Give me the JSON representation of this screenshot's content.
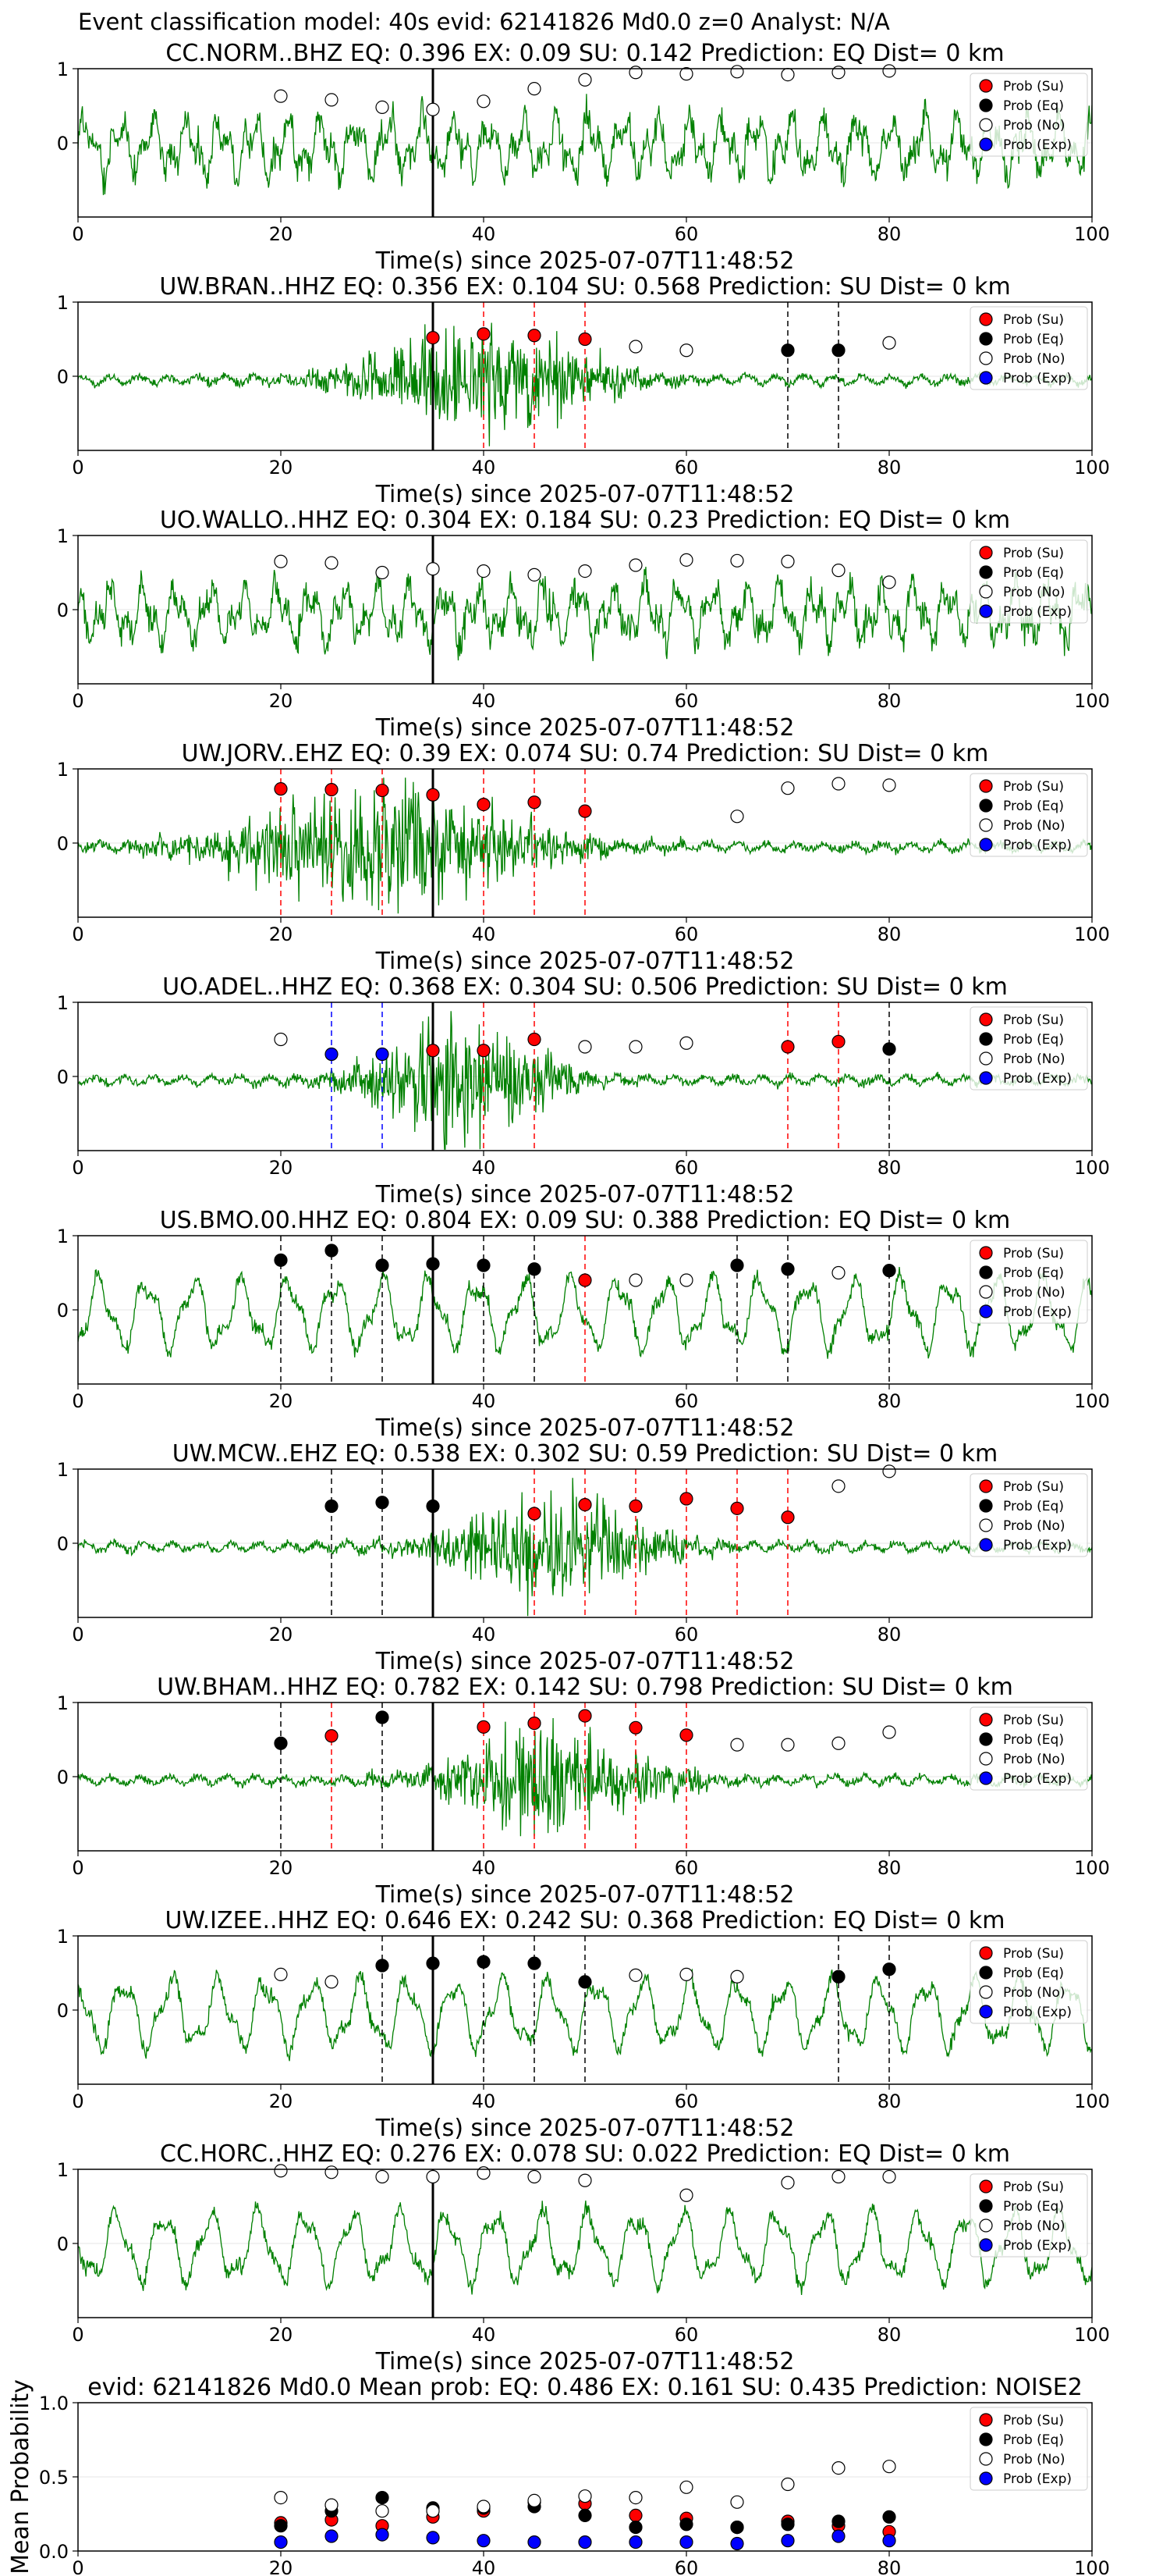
{
  "suptitle": "Event classification model: 40s evid: 62141826 Md0.0 z=0 Analyst: N/A",
  "colors": {
    "waveform": "#008000",
    "su": "#ff0000",
    "eq": "#000000",
    "no": "#ffffff",
    "exp": "#0000ff",
    "pick": "#000000"
  },
  "legend": [
    "Prob (Su)",
    "Prob (Eq)",
    "Prob (No)",
    "Prob (Exp)"
  ],
  "chart_data": [
    {
      "type": "scatter",
      "title": "CC.NORM..BHZ   EQ: 0.396  EX: 0.09  SU: 0.142   Prediction: EQ    Dist= 0 km",
      "xlabel": "Time(s) since 2025-07-07T11:48:52",
      "xlim": [
        0,
        100
      ],
      "ylim": [
        -1,
        1
      ],
      "xticks": [
        0,
        20,
        40,
        60,
        80,
        100
      ],
      "yticks": [
        1,
        0
      ],
      "pick_time": 35,
      "waveform_style": "noisy",
      "points": [
        {
          "x": 20,
          "y": 0.63,
          "class": "no"
        },
        {
          "x": 25,
          "y": 0.58,
          "class": "no"
        },
        {
          "x": 30,
          "y": 0.48,
          "class": "no"
        },
        {
          "x": 35,
          "y": 0.45,
          "class": "no"
        },
        {
          "x": 40,
          "y": 0.56,
          "class": "no"
        },
        {
          "x": 45,
          "y": 0.73,
          "class": "no"
        },
        {
          "x": 50,
          "y": 0.85,
          "class": "no"
        },
        {
          "x": 55,
          "y": 0.95,
          "class": "no"
        },
        {
          "x": 60,
          "y": 0.93,
          "class": "no"
        },
        {
          "x": 65,
          "y": 0.96,
          "class": "no"
        },
        {
          "x": 70,
          "y": 0.92,
          "class": "no"
        },
        {
          "x": 75,
          "y": 0.95,
          "class": "no"
        },
        {
          "x": 80,
          "y": 0.97,
          "class": "no"
        }
      ]
    },
    {
      "type": "scatter",
      "title": "UW.BRAN..HHZ   EQ: 0.356  EX: 0.104  SU: 0.568   Prediction: SU    Dist= 0 km",
      "xlabel": "Time(s) since 2025-07-07T11:48:52",
      "xlim": [
        0,
        100
      ],
      "ylim": [
        -1,
        1
      ],
      "xticks": [
        0,
        20,
        40,
        60,
        80,
        100
      ],
      "yticks": [
        1,
        0
      ],
      "pick_time": 35,
      "waveform_style": "burst",
      "points": [
        {
          "x": 35,
          "y": 0.52,
          "class": "su"
        },
        {
          "x": 40,
          "y": 0.57,
          "class": "su"
        },
        {
          "x": 45,
          "y": 0.55,
          "class": "su"
        },
        {
          "x": 50,
          "y": 0.5,
          "class": "su"
        },
        {
          "x": 55,
          "y": 0.4,
          "class": "no"
        },
        {
          "x": 60,
          "y": 0.35,
          "class": "no"
        },
        {
          "x": 70,
          "y": 0.35,
          "class": "eq"
        },
        {
          "x": 75,
          "y": 0.35,
          "class": "eq"
        },
        {
          "x": 80,
          "y": 0.45,
          "class": "no"
        }
      ]
    },
    {
      "type": "scatter",
      "title": "UO.WALLO..HHZ   EQ: 0.304  EX: 0.184  SU: 0.23   Prediction: EQ    Dist= 0 km",
      "xlabel": "Time(s) since 2025-07-07T11:48:52",
      "xlim": [
        0,
        100
      ],
      "ylim": [
        -1,
        1
      ],
      "xticks": [
        0,
        20,
        40,
        60,
        80,
        100
      ],
      "yticks": [
        1,
        0
      ],
      "pick_time": 35,
      "waveform_style": "noisy",
      "points": [
        {
          "x": 20,
          "y": 0.65,
          "class": "no"
        },
        {
          "x": 25,
          "y": 0.63,
          "class": "no"
        },
        {
          "x": 30,
          "y": 0.5,
          "class": "no"
        },
        {
          "x": 35,
          "y": 0.55,
          "class": "no"
        },
        {
          "x": 40,
          "y": 0.52,
          "class": "no"
        },
        {
          "x": 45,
          "y": 0.47,
          "class": "no"
        },
        {
          "x": 50,
          "y": 0.52,
          "class": "no"
        },
        {
          "x": 55,
          "y": 0.6,
          "class": "no"
        },
        {
          "x": 60,
          "y": 0.67,
          "class": "no"
        },
        {
          "x": 65,
          "y": 0.66,
          "class": "no"
        },
        {
          "x": 70,
          "y": 0.65,
          "class": "no"
        },
        {
          "x": 75,
          "y": 0.53,
          "class": "no"
        },
        {
          "x": 80,
          "y": 0.37,
          "class": "no"
        }
      ]
    },
    {
      "type": "scatter",
      "title": "UW.JORV..EHZ   EQ: 0.39  EX: 0.074  SU: 0.74   Prediction: SU    Dist= 0 km",
      "xlabel": "Time(s) since 2025-07-07T11:48:52",
      "xlim": [
        0,
        100
      ],
      "ylim": [
        -1,
        1
      ],
      "xticks": [
        0,
        20,
        40,
        60,
        80,
        100
      ],
      "yticks": [
        1,
        0
      ],
      "pick_time": 35,
      "waveform_style": "burst-early",
      "points": [
        {
          "x": 20,
          "y": 0.73,
          "class": "su"
        },
        {
          "x": 25,
          "y": 0.72,
          "class": "su"
        },
        {
          "x": 30,
          "y": 0.71,
          "class": "su"
        },
        {
          "x": 35,
          "y": 0.65,
          "class": "su"
        },
        {
          "x": 40,
          "y": 0.52,
          "class": "su"
        },
        {
          "x": 45,
          "y": 0.55,
          "class": "su"
        },
        {
          "x": 50,
          "y": 0.43,
          "class": "su"
        },
        {
          "x": 65,
          "y": 0.36,
          "class": "no"
        },
        {
          "x": 70,
          "y": 0.74,
          "class": "no"
        },
        {
          "x": 75,
          "y": 0.8,
          "class": "no"
        },
        {
          "x": 80,
          "y": 0.78,
          "class": "no"
        }
      ]
    },
    {
      "type": "scatter",
      "title": "UO.ADEL..HHZ   EQ: 0.368  EX: 0.304  SU: 0.506   Prediction: SU    Dist= 0 km",
      "xlabel": "Time(s) since 2025-07-07T11:48:52",
      "xlim": [
        0,
        100
      ],
      "ylim": [
        -1,
        1
      ],
      "xticks": [
        0,
        20,
        40,
        60,
        80,
        100
      ],
      "yticks": [
        1,
        0
      ],
      "pick_time": 35,
      "waveform_style": "burst-mid",
      "points": [
        {
          "x": 20,
          "y": 0.5,
          "class": "no"
        },
        {
          "x": 25,
          "y": 0.3,
          "class": "exp"
        },
        {
          "x": 30,
          "y": 0.3,
          "class": "exp"
        },
        {
          "x": 35,
          "y": 0.35,
          "class": "su"
        },
        {
          "x": 40,
          "y": 0.35,
          "class": "su"
        },
        {
          "x": 45,
          "y": 0.5,
          "class": "su"
        },
        {
          "x": 50,
          "y": 0.4,
          "class": "no"
        },
        {
          "x": 55,
          "y": 0.4,
          "class": "no"
        },
        {
          "x": 60,
          "y": 0.45,
          "class": "no"
        },
        {
          "x": 70,
          "y": 0.4,
          "class": "su"
        },
        {
          "x": 75,
          "y": 0.47,
          "class": "su"
        },
        {
          "x": 80,
          "y": 0.37,
          "class": "eq"
        }
      ]
    },
    {
      "type": "scatter",
      "title": "US.BMO.00.HHZ   EQ: 0.804  EX: 0.09  SU: 0.388   Prediction: EQ    Dist= 0 km",
      "xlabel": "Time(s) since 2025-07-07T11:48:52",
      "xlim": [
        0,
        100
      ],
      "ylim": [
        -1,
        1
      ],
      "xticks": [
        0,
        20,
        40,
        60,
        80,
        100
      ],
      "yticks": [
        1,
        0
      ],
      "pick_time": 35,
      "waveform_style": "oscillating",
      "points": [
        {
          "x": 20,
          "y": 0.67,
          "class": "eq"
        },
        {
          "x": 25,
          "y": 0.8,
          "class": "eq"
        },
        {
          "x": 30,
          "y": 0.6,
          "class": "eq"
        },
        {
          "x": 35,
          "y": 0.62,
          "class": "eq"
        },
        {
          "x": 40,
          "y": 0.6,
          "class": "eq"
        },
        {
          "x": 45,
          "y": 0.55,
          "class": "eq"
        },
        {
          "x": 50,
          "y": 0.4,
          "class": "su"
        },
        {
          "x": 55,
          "y": 0.4,
          "class": "no"
        },
        {
          "x": 60,
          "y": 0.4,
          "class": "no"
        },
        {
          "x": 65,
          "y": 0.6,
          "class": "eq"
        },
        {
          "x": 70,
          "y": 0.55,
          "class": "eq"
        },
        {
          "x": 75,
          "y": 0.5,
          "class": "no"
        },
        {
          "x": 80,
          "y": 0.53,
          "class": "eq"
        }
      ]
    },
    {
      "type": "scatter",
      "title": "UW.MCW..EHZ   EQ: 0.538  EX: 0.302  SU: 0.59   Prediction: SU    Dist= 0 km",
      "xlabel": "Time(s) since 2025-07-07T11:48:52",
      "xlim": [
        0,
        100
      ],
      "ylim": [
        -1,
        1
      ],
      "xticks": [
        0,
        20,
        40,
        60,
        80
      ],
      "yticks": [
        1,
        0
      ],
      "pick_time": 35,
      "waveform_style": "burst-late",
      "points": [
        {
          "x": 25,
          "y": 0.5,
          "class": "eq"
        },
        {
          "x": 30,
          "y": 0.55,
          "class": "eq"
        },
        {
          "x": 35,
          "y": 0.5,
          "class": "eq"
        },
        {
          "x": 45,
          "y": 0.4,
          "class": "su"
        },
        {
          "x": 50,
          "y": 0.52,
          "class": "su"
        },
        {
          "x": 55,
          "y": 0.5,
          "class": "su"
        },
        {
          "x": 60,
          "y": 0.6,
          "class": "su"
        },
        {
          "x": 65,
          "y": 0.47,
          "class": "su"
        },
        {
          "x": 70,
          "y": 0.35,
          "class": "su"
        },
        {
          "x": 75,
          "y": 0.77,
          "class": "no"
        },
        {
          "x": 80,
          "y": 0.97,
          "class": "no"
        }
      ]
    },
    {
      "type": "scatter",
      "title": "UW.BHAM..HHZ   EQ: 0.782  EX: 0.142  SU: 0.798   Prediction: SU    Dist= 0 km",
      "xlabel": "Time(s) since 2025-07-07T11:48:52",
      "xlim": [
        0,
        100
      ],
      "ylim": [
        -1,
        1
      ],
      "xticks": [
        0,
        20,
        40,
        60,
        80,
        100
      ],
      "yticks": [
        1,
        0
      ],
      "pick_time": 35,
      "waveform_style": "burst-late",
      "points": [
        {
          "x": 20,
          "y": 0.45,
          "class": "eq"
        },
        {
          "x": 25,
          "y": 0.55,
          "class": "su"
        },
        {
          "x": 30,
          "y": 0.8,
          "class": "eq"
        },
        {
          "x": 40,
          "y": 0.67,
          "class": "su"
        },
        {
          "x": 45,
          "y": 0.72,
          "class": "su"
        },
        {
          "x": 50,
          "y": 0.82,
          "class": "su"
        },
        {
          "x": 55,
          "y": 0.66,
          "class": "su"
        },
        {
          "x": 60,
          "y": 0.56,
          "class": "su"
        },
        {
          "x": 65,
          "y": 0.43,
          "class": "no"
        },
        {
          "x": 70,
          "y": 0.43,
          "class": "no"
        },
        {
          "x": 75,
          "y": 0.45,
          "class": "no"
        },
        {
          "x": 80,
          "y": 0.6,
          "class": "no"
        }
      ]
    },
    {
      "type": "scatter",
      "title": "UW.IZEE..HHZ   EQ: 0.646  EX: 0.242  SU: 0.368   Prediction: EQ    Dist= 0 km",
      "xlabel": "Time(s) since 2025-07-07T11:48:52",
      "xlim": [
        0,
        100
      ],
      "ylim": [
        -1,
        1
      ],
      "xticks": [
        0,
        20,
        40,
        60,
        80,
        100
      ],
      "yticks": [
        1,
        0
      ],
      "pick_time": 35,
      "waveform_style": "oscillating",
      "points": [
        {
          "x": 20,
          "y": 0.48,
          "class": "no"
        },
        {
          "x": 25,
          "y": 0.38,
          "class": "no"
        },
        {
          "x": 30,
          "y": 0.6,
          "class": "eq"
        },
        {
          "x": 35,
          "y": 0.63,
          "class": "eq"
        },
        {
          "x": 40,
          "y": 0.65,
          "class": "eq"
        },
        {
          "x": 45,
          "y": 0.63,
          "class": "eq"
        },
        {
          "x": 50,
          "y": 0.38,
          "class": "eq"
        },
        {
          "x": 55,
          "y": 0.47,
          "class": "no"
        },
        {
          "x": 60,
          "y": 0.48,
          "class": "no"
        },
        {
          "x": 65,
          "y": 0.45,
          "class": "no"
        },
        {
          "x": 75,
          "y": 0.45,
          "class": "eq"
        },
        {
          "x": 80,
          "y": 0.55,
          "class": "eq"
        }
      ]
    },
    {
      "type": "scatter",
      "title": "CC.HORC..HHZ   EQ: 0.276  EX: 0.078  SU: 0.022   Prediction: EQ    Dist= 0 km",
      "xlabel": "Time(s) since 2025-07-07T11:48:52",
      "xlim": [
        0,
        100
      ],
      "ylim": [
        -1,
        1
      ],
      "xticks": [
        0,
        20,
        40,
        60,
        80,
        100
      ],
      "yticks": [
        1,
        0
      ],
      "pick_time": 35,
      "waveform_style": "oscillating",
      "points": [
        {
          "x": 20,
          "y": 0.98,
          "class": "no"
        },
        {
          "x": 25,
          "y": 0.96,
          "class": "no"
        },
        {
          "x": 30,
          "y": 0.9,
          "class": "no"
        },
        {
          "x": 35,
          "y": 0.9,
          "class": "no"
        },
        {
          "x": 40,
          "y": 0.95,
          "class": "no"
        },
        {
          "x": 45,
          "y": 0.9,
          "class": "no"
        },
        {
          "x": 50,
          "y": 0.85,
          "class": "no"
        },
        {
          "x": 60,
          "y": 0.65,
          "class": "no"
        },
        {
          "x": 70,
          "y": 0.82,
          "class": "no"
        },
        {
          "x": 75,
          "y": 0.9,
          "class": "no"
        },
        {
          "x": 80,
          "y": 0.9,
          "class": "no"
        }
      ]
    },
    {
      "type": "scatter",
      "title": "evid: 62141826  Md0.0   Mean prob:   EQ: 0.486  EX: 0.161  SU: 0.435   Prediction: NOISE2",
      "xlabel": "",
      "ylabel": "Mean Probability",
      "xlim": [
        0,
        100
      ],
      "ylim": [
        0,
        1
      ],
      "xticks": [
        0,
        20,
        40,
        60,
        80,
        100
      ],
      "yticks": [
        1.0,
        0.5,
        0.0
      ],
      "series": [
        {
          "name": "Prob (Su)",
          "class": "su",
          "x": [
            20,
            25,
            30,
            35,
            40,
            45,
            50,
            55,
            60,
            65,
            70,
            75,
            80
          ],
          "y": [
            0.19,
            0.21,
            0.17,
            0.23,
            0.27,
            0.33,
            0.32,
            0.24,
            0.22,
            0.16,
            0.2,
            0.17,
            0.13
          ]
        },
        {
          "name": "Prob (Eq)",
          "class": "eq",
          "x": [
            20,
            25,
            30,
            35,
            40,
            45,
            50,
            55,
            60,
            65,
            70,
            75,
            80
          ],
          "y": [
            0.17,
            0.27,
            0.36,
            0.29,
            0.29,
            0.3,
            0.24,
            0.16,
            0.18,
            0.16,
            0.18,
            0.2,
            0.23
          ]
        },
        {
          "name": "Prob (No)",
          "class": "no",
          "x": [
            20,
            25,
            30,
            35,
            40,
            45,
            50,
            55,
            60,
            65,
            70,
            75,
            80
          ],
          "y": [
            0.36,
            0.31,
            0.27,
            0.27,
            0.3,
            0.34,
            0.37,
            0.36,
            0.43,
            0.33,
            0.45,
            0.56,
            0.57
          ]
        },
        {
          "name": "Prob (Exp)",
          "class": "exp",
          "x": [
            20,
            25,
            30,
            35,
            40,
            45,
            50,
            55,
            60,
            65,
            70,
            75,
            80
          ],
          "y": [
            0.06,
            0.1,
            0.11,
            0.09,
            0.07,
            0.06,
            0.06,
            0.06,
            0.06,
            0.05,
            0.07,
            0.1,
            0.07
          ]
        }
      ]
    }
  ]
}
